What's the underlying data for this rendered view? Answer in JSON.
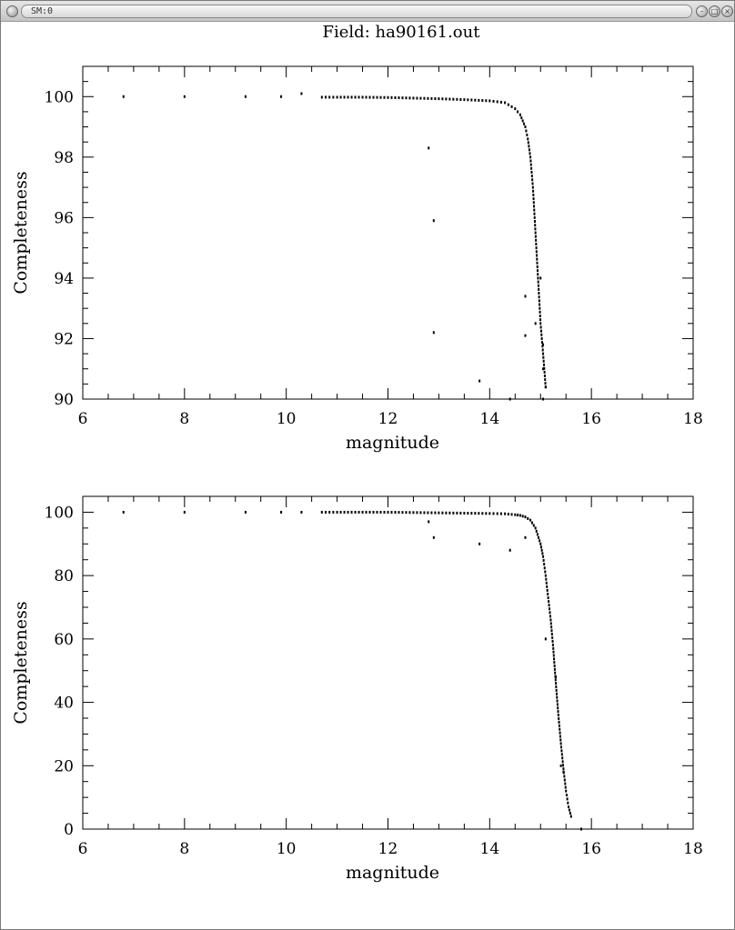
{
  "window": {
    "title": "SM:0",
    "buttons": {
      "minimize": "minimize-icon",
      "maximize": "maximize-icon",
      "close": "close-icon"
    }
  },
  "chart_title": "Field: ha90161.out",
  "chart_data": [
    {
      "type": "scatter",
      "xlabel": "magnitude",
      "ylabel": "Completeness",
      "xlim": [
        6,
        18
      ],
      "ylim": [
        90,
        101
      ],
      "xticks": [
        6,
        8,
        10,
        12,
        14,
        16,
        18
      ],
      "yticks": [
        90,
        92,
        94,
        96,
        98,
        100
      ],
      "grid": false,
      "points": [
        [
          6.8,
          100
        ],
        [
          8,
          100
        ],
        [
          9.2,
          100
        ],
        [
          9.9,
          100
        ],
        [
          10.3,
          100.1
        ],
        [
          12.8,
          98.3
        ],
        [
          12.9,
          95.9
        ],
        [
          12.9,
          92.2
        ],
        [
          13.8,
          90.6
        ],
        [
          14.4,
          90
        ],
        [
          14.7,
          93.4
        ],
        [
          14.7,
          92.1
        ],
        [
          14.9,
          92.5
        ],
        [
          15.0,
          94.0
        ],
        [
          15.05,
          91.8
        ],
        [
          15.05,
          91.0
        ],
        [
          15.1,
          90.4
        ],
        [
          15.05,
          90
        ]
      ],
      "curve": [
        [
          10.7,
          99.98
        ],
        [
          11.0,
          99.98
        ],
        [
          11.5,
          99.98
        ],
        [
          12.0,
          99.97
        ],
        [
          12.5,
          99.95
        ],
        [
          13.0,
          99.93
        ],
        [
          13.5,
          99.9
        ],
        [
          14.0,
          99.86
        ],
        [
          14.3,
          99.8
        ],
        [
          14.5,
          99.6
        ],
        [
          14.6,
          99.4
        ],
        [
          14.7,
          99.0
        ],
        [
          14.75,
          98.6
        ],
        [
          14.8,
          98.0
        ],
        [
          14.85,
          97.0
        ],
        [
          14.9,
          95.5
        ],
        [
          14.95,
          94.0
        ],
        [
          15.0,
          92.5
        ],
        [
          15.05,
          91.5
        ],
        [
          15.1,
          90.4
        ]
      ]
    },
    {
      "type": "scatter",
      "xlabel": "magnitude",
      "ylabel": "Completeness",
      "xlim": [
        6,
        18
      ],
      "ylim": [
        0,
        105
      ],
      "xticks": [
        6,
        8,
        10,
        12,
        14,
        16,
        18
      ],
      "yticks": [
        0,
        20,
        40,
        60,
        80,
        100
      ],
      "grid": false,
      "points": [
        [
          6.8,
          100
        ],
        [
          8,
          100
        ],
        [
          9.2,
          100
        ],
        [
          9.9,
          100
        ],
        [
          10.3,
          100
        ],
        [
          12.8,
          97
        ],
        [
          12.9,
          92
        ],
        [
          13.8,
          90
        ],
        [
          14.4,
          88
        ],
        [
          14.7,
          92
        ],
        [
          15.1,
          60
        ],
        [
          15.3,
          48
        ],
        [
          15.4,
          20
        ],
        [
          15.45,
          18
        ],
        [
          15.8,
          0
        ]
      ],
      "curve": [
        [
          10.7,
          100
        ],
        [
          11.0,
          100
        ],
        [
          11.5,
          100
        ],
        [
          12.0,
          100
        ],
        [
          12.5,
          99.9
        ],
        [
          13.0,
          99.8
        ],
        [
          13.5,
          99.7
        ],
        [
          14.0,
          99.6
        ],
        [
          14.3,
          99.5
        ],
        [
          14.5,
          99.2
        ],
        [
          14.6,
          99.0
        ],
        [
          14.7,
          98.5
        ],
        [
          14.8,
          97.5
        ],
        [
          14.9,
          95.0
        ],
        [
          15.0,
          90.0
        ],
        [
          15.05,
          86.0
        ],
        [
          15.1,
          80.0
        ],
        [
          15.15,
          73.0
        ],
        [
          15.2,
          66.0
        ],
        [
          15.25,
          57.0
        ],
        [
          15.3,
          46.0
        ],
        [
          15.35,
          36.0
        ],
        [
          15.4,
          27.0
        ],
        [
          15.45,
          19.0
        ],
        [
          15.5,
          12.0
        ],
        [
          15.55,
          7.0
        ],
        [
          15.6,
          4.0
        ]
      ]
    }
  ]
}
